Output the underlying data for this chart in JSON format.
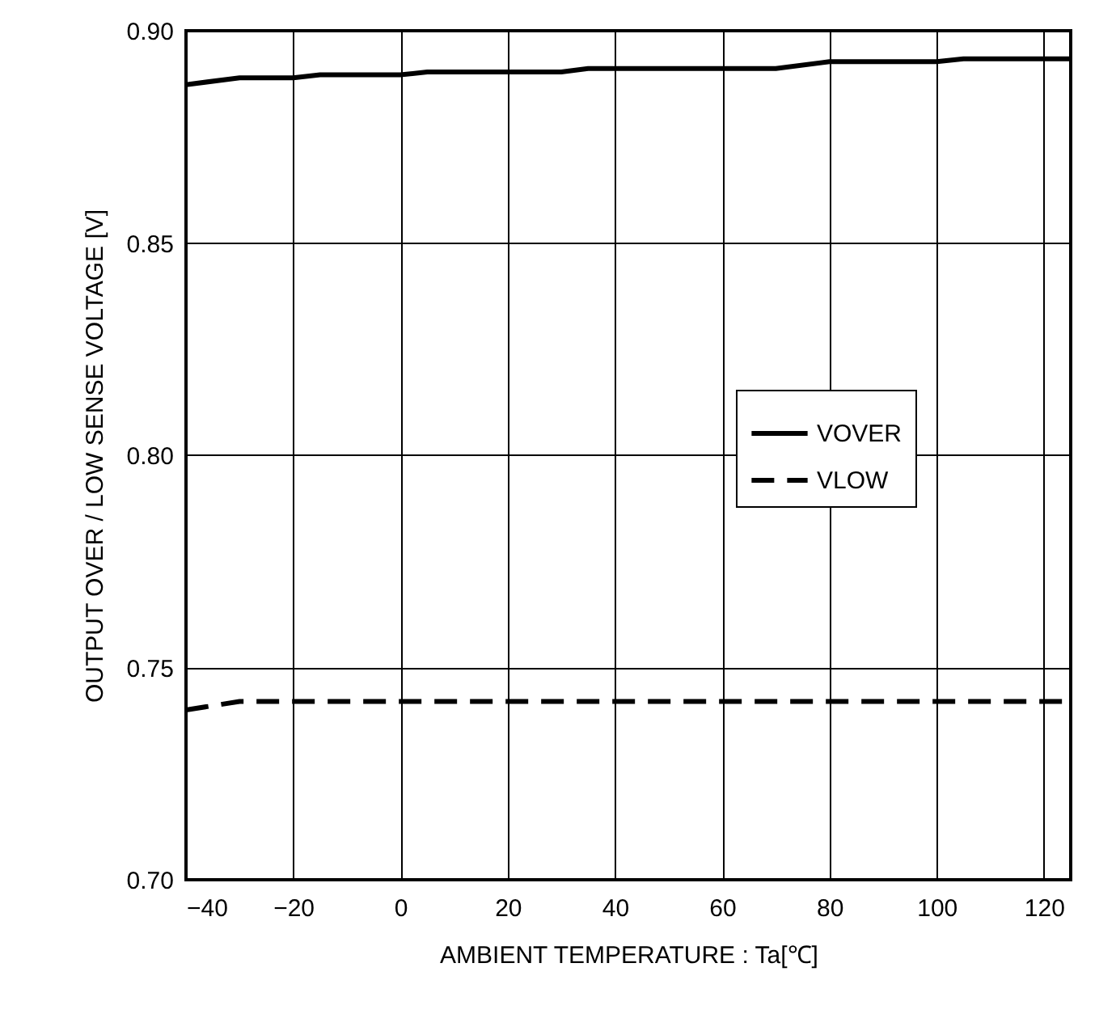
{
  "chart_data": {
    "type": "line",
    "xlabel": "AMBIENT TEMPERATURE : Ta[℃]",
    "ylabel": "OUTPUT OVER / LOW SENSE VOLTAGE [V]",
    "xlim": [
      -40,
      125
    ],
    "xticks": [
      -40,
      -20,
      0,
      20,
      40,
      60,
      80,
      100,
      120
    ],
    "ylim": [
      0.7,
      0.9
    ],
    "yticks": [
      {
        "value": 0.7,
        "label": "0.70"
      },
      {
        "value": 0.75,
        "label": "0.75"
      },
      {
        "value": 0.8,
        "label": "0.80"
      },
      {
        "value": 0.85,
        "label": "0.85"
      },
      {
        "value": 0.9,
        "label": "0.90"
      }
    ],
    "grid": true,
    "legend": "right",
    "marker": "none",
    "series": [
      {
        "name": "VOVER",
        "color": "#000000",
        "line_style": "solid",
        "x": [
          -40,
          -30,
          -20,
          -15,
          0,
          5,
          30,
          35,
          70,
          80,
          100,
          105,
          125
        ],
        "values": [
          0.8873,
          0.8889,
          0.8889,
          0.8896,
          0.8896,
          0.8903,
          0.8903,
          0.8911,
          0.8911,
          0.8927,
          0.8927,
          0.8934,
          0.8934
        ]
      },
      {
        "name": "VLOW",
        "color": "#000000",
        "line_style": "dashed",
        "x": [
          -40,
          -30,
          125
        ],
        "values": [
          0.74,
          0.742,
          0.742
        ]
      }
    ]
  }
}
